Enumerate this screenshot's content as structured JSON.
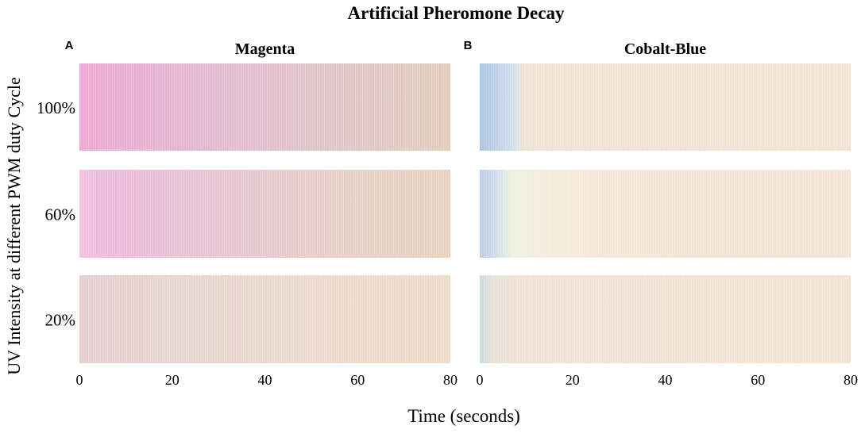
{
  "chart_data": {
    "type": "heatmap",
    "title": "Artificial Pheromone Decay",
    "xlabel": "Time (seconds)",
    "ylabel": "UV Intensity at different PWM duty Cycle",
    "xlim": [
      0,
      80
    ],
    "x_ticks": [
      "0",
      "20",
      "40",
      "60",
      "80"
    ],
    "rows": [
      "100%",
      "60%",
      "20%"
    ],
    "panels": [
      {
        "letter": "A",
        "name": "Magenta",
        "strips": [
          {
            "row": "100%",
            "stops": [
              [
                0,
                "#eda6d3"
              ],
              [
                8,
                "#e8acd2"
              ],
              [
                25,
                "#e3b7d0"
              ],
              [
                50,
                "#dfc2c9"
              ],
              [
                80,
                "#e2ccbb"
              ]
            ]
          },
          {
            "row": "60%",
            "stops": [
              [
                0,
                "#f4c0e1"
              ],
              [
                5,
                "#ebb9d9"
              ],
              [
                30,
                "#e6c4d2"
              ],
              [
                60,
                "#e6cfc4"
              ],
              [
                80,
                "#e7d2bf"
              ]
            ]
          },
          {
            "row": "20%",
            "stops": [
              [
                0,
                "#e4cfcf"
              ],
              [
                20,
                "#e6d4ce"
              ],
              [
                50,
                "#ead9cc"
              ],
              [
                80,
                "#ecdac7"
              ]
            ]
          }
        ]
      },
      {
        "letter": "B",
        "name": "Cobalt-Blue",
        "strips": [
          {
            "row": "100%",
            "stops": [
              [
                0,
                "#a9c4e2"
              ],
              [
                5,
                "#c3d4e8"
              ],
              [
                8,
                "#d8e3e8"
              ],
              [
                9.5,
                "#f1e2d3"
              ],
              [
                80,
                "#f4e3d3"
              ]
            ]
          },
          {
            "row": "60%",
            "stops": [
              [
                0,
                "#b6cde6"
              ],
              [
                4,
                "#d2dfeb"
              ],
              [
                7,
                "#eef0e0"
              ],
              [
                15,
                "#f4ecda"
              ],
              [
                30,
                "#f4e5d4"
              ],
              [
                80,
                "#f4e3d3"
              ]
            ]
          },
          {
            "row": "20%",
            "stops": [
              [
                0,
                "#c7dbe0"
              ],
              [
                3,
                "#e6e2d6"
              ],
              [
                8,
                "#efe2d4"
              ],
              [
                80,
                "#f2e2d2"
              ]
            ]
          }
        ]
      }
    ]
  }
}
